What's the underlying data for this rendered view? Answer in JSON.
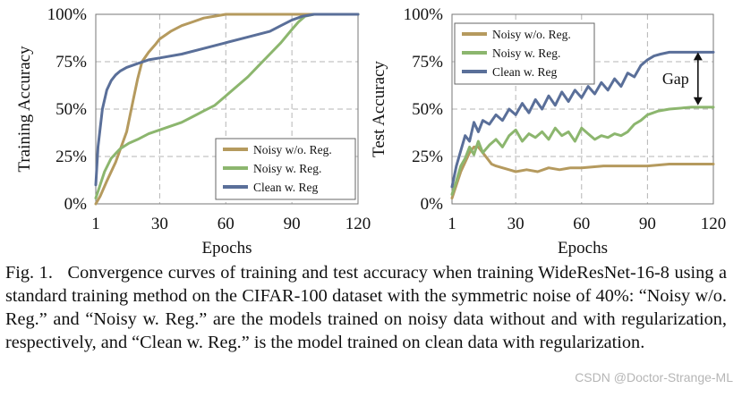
{
  "chart_data": [
    {
      "type": "line",
      "title": "",
      "xlabel": "Epochs",
      "ylabel": "Training Accuracy",
      "xlim": [
        1,
        120
      ],
      "ylim": [
        0,
        100
      ],
      "xticks": [
        1,
        30,
        60,
        90,
        120
      ],
      "xtick_labels": [
        "1",
        "30",
        "60",
        "90",
        "120"
      ],
      "yticks": [
        0,
        25,
        50,
        75,
        100
      ],
      "ytick_labels": [
        "0%",
        "25%",
        "50%",
        "75%",
        "100%"
      ],
      "grid": true,
      "legend_position": "bottom-right",
      "series": [
        {
          "name": "Noisy w/o. Reg.",
          "color": "#b59a5e",
          "x": [
            1,
            3,
            6,
            10,
            15,
            18,
            20,
            22,
            25,
            28,
            30,
            35,
            40,
            45,
            50,
            55,
            60,
            70,
            80,
            90,
            100,
            110,
            120
          ],
          "y": [
            0,
            4,
            12,
            22,
            38,
            55,
            66,
            75,
            80,
            84,
            87,
            91,
            94,
            96,
            98,
            99,
            100,
            100,
            100,
            100,
            100,
            100,
            100
          ]
        },
        {
          "name": "Noisy w. Reg.",
          "color": "#8cb66e",
          "x": [
            1,
            3,
            5,
            8,
            12,
            16,
            20,
            25,
            30,
            35,
            40,
            45,
            50,
            55,
            60,
            65,
            70,
            75,
            80,
            85,
            90,
            93,
            96,
            100,
            105,
            110,
            120
          ],
          "y": [
            3,
            10,
            17,
            24,
            29,
            32,
            34,
            37,
            39,
            41,
            43,
            46,
            49,
            52,
            57,
            62,
            67,
            73,
            79,
            85,
            92,
            96,
            99,
            100,
            100,
            100,
            100
          ]
        },
        {
          "name": "Clean w. Reg",
          "color": "#5a6f99",
          "x": [
            1,
            2,
            4,
            6,
            8,
            10,
            12,
            15,
            20,
            25,
            30,
            40,
            50,
            60,
            70,
            80,
            85,
            90,
            95,
            100,
            110,
            120
          ],
          "y": [
            10,
            30,
            50,
            60,
            65,
            68,
            70,
            72,
            74,
            76,
            77,
            79,
            82,
            85,
            88,
            91,
            94,
            97,
            99,
            100,
            100,
            100
          ]
        }
      ]
    },
    {
      "type": "line",
      "title": "",
      "xlabel": "Epochs",
      "ylabel": "Test Accuracy",
      "xlim": [
        1,
        120
      ],
      "ylim": [
        0,
        100
      ],
      "xticks": [
        1,
        30,
        60,
        90,
        120
      ],
      "xtick_labels": [
        "1",
        "30",
        "60",
        "90",
        "120"
      ],
      "yticks": [
        0,
        25,
        50,
        75,
        100
      ],
      "ytick_labels": [
        "0%",
        "25%",
        "50%",
        "75%",
        "100%"
      ],
      "grid": true,
      "legend_position": "top-left",
      "annotation": {
        "text": "Gap",
        "x": 113,
        "y_from": 52,
        "y_to": 80
      },
      "series": [
        {
          "name": "Noisy w/o. Reg.",
          "color": "#b59a5e",
          "x": [
            1,
            3,
            5,
            7,
            9,
            11,
            13,
            15,
            17,
            19,
            21,
            24,
            27,
            30,
            35,
            40,
            45,
            50,
            55,
            60,
            70,
            80,
            90,
            100,
            110,
            120
          ],
          "y": [
            3,
            10,
            17,
            22,
            27,
            30,
            30,
            27,
            24,
            21,
            20,
            19,
            18,
            17,
            18,
            17,
            19,
            18,
            19,
            19,
            20,
            20,
            20,
            21,
            21,
            21
          ]
        },
        {
          "name": "Noisy w. Reg.",
          "color": "#8cb66e",
          "x": [
            1,
            3,
            5,
            7,
            9,
            11,
            13,
            15,
            18,
            21,
            24,
            27,
            30,
            33,
            36,
            39,
            42,
            45,
            48,
            51,
            54,
            57,
            60,
            63,
            66,
            69,
            72,
            75,
            78,
            81,
            84,
            87,
            90,
            95,
            100,
            110,
            120
          ],
          "y": [
            5,
            12,
            20,
            24,
            30,
            26,
            33,
            27,
            31,
            34,
            30,
            36,
            39,
            33,
            37,
            35,
            38,
            34,
            40,
            36,
            38,
            33,
            40,
            37,
            34,
            36,
            35,
            37,
            36,
            38,
            42,
            44,
            47,
            49,
            50,
            51,
            51
          ]
        },
        {
          "name": "Clean w. Reg",
          "color": "#5a6f99",
          "x": [
            1,
            3,
            5,
            7,
            9,
            11,
            13,
            15,
            18,
            21,
            24,
            27,
            30,
            33,
            36,
            39,
            42,
            45,
            48,
            51,
            54,
            57,
            60,
            63,
            66,
            69,
            72,
            75,
            78,
            81,
            84,
            87,
            90,
            93,
            96,
            100,
            110,
            120
          ],
          "y": [
            9,
            20,
            28,
            36,
            33,
            43,
            38,
            44,
            42,
            47,
            44,
            50,
            47,
            53,
            48,
            55,
            50,
            57,
            52,
            59,
            54,
            60,
            56,
            62,
            58,
            64,
            60,
            66,
            62,
            69,
            67,
            73,
            76,
            78,
            79,
            80,
            80,
            80
          ]
        }
      ]
    }
  ],
  "caption": {
    "label": "Fig. 1.",
    "text": "Convergence curves of training and test accuracy when training WideResNet-16-8 using a standard training method on the CIFAR-100 dataset with the symmetric noise of 40%: “Noisy w/o. Reg.” and “Noisy w. Reg.” are the models trained on noisy data without and with regularization, respectively, and “Clean w. Reg.” is the model trained on clean data with regularization."
  },
  "watermark": "CSDN @Doctor-Strange-ML"
}
